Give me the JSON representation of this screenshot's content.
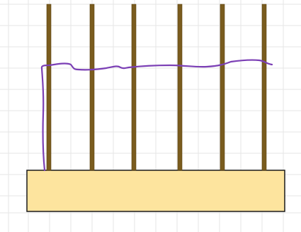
{
  "canvas": {
    "background": "#ffffff",
    "grid_color": "#e6e6e6",
    "grid_visible": true
  },
  "base_block": {
    "fill": "#fde49e",
    "stroke": "#1a1a1a"
  },
  "posts": {
    "count": 6,
    "fill": "#7a5c1e",
    "stroke": "#5a4010"
  },
  "wire": {
    "color": "#7b3fb5"
  }
}
